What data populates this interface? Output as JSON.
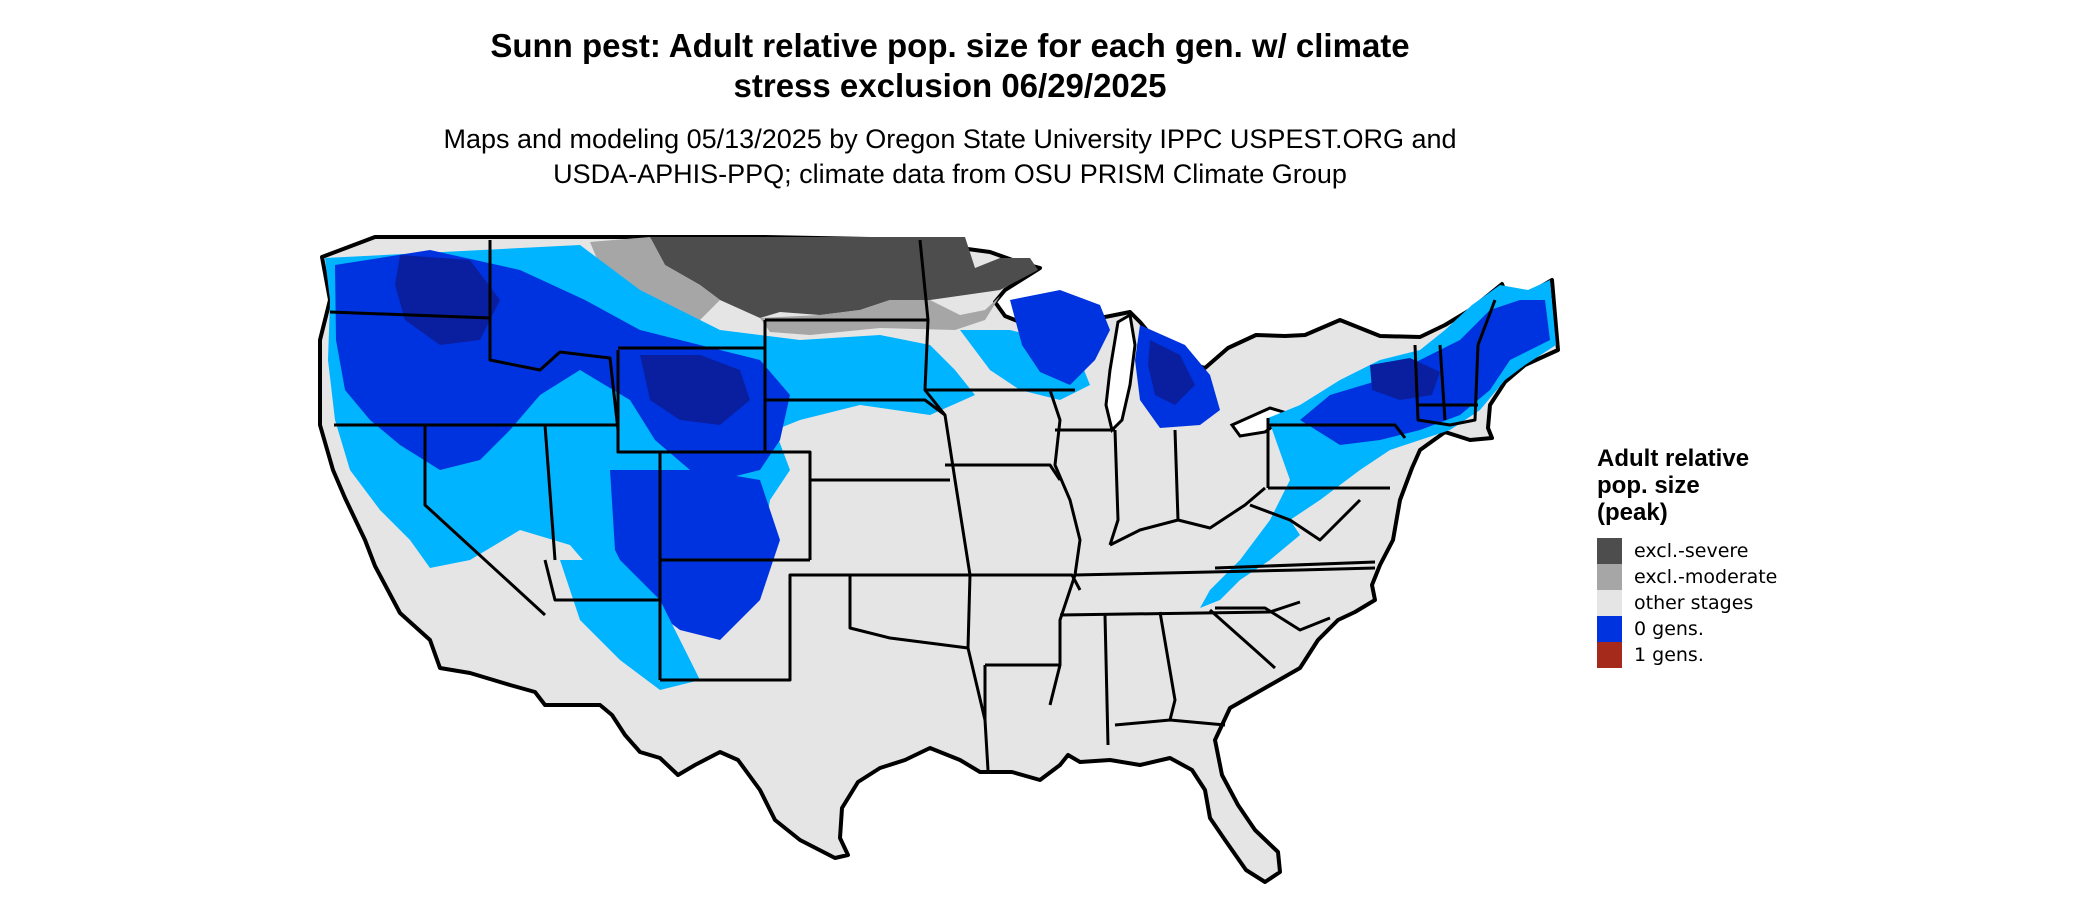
{
  "title_line1": "Sunn pest: Adult relative pop. size for each gen. w/ climate",
  "title_line2": "stress exclusion 06/29/2025",
  "subtitle_line1": "Maps and modeling 05/13/2025 by Oregon State University IPPC USPEST.ORG and",
  "subtitle_line2": "USDA-APHIS-PPQ; climate data from OSU PRISM Climate Group",
  "legend": {
    "title_line1": "Adult relative",
    "title_line2": "pop. size",
    "title_line3": "(peak)",
    "items": [
      {
        "label": "excl.-severe",
        "color": "#4d4d4d"
      },
      {
        "label": "excl.-moderate",
        "color": "#a6a6a6"
      },
      {
        "label": "other stages",
        "color": "#e5e5e5"
      },
      {
        "label": "0 gens.",
        "color": "#0033e0"
      },
      {
        "label": "1 gens.",
        "color": "#a52a1c"
      }
    ]
  },
  "colors": {
    "land": "#e5e5e5",
    "light_blue": "#00b4ff",
    "blue": "#0033e0",
    "dark_blue": "#0a1fa0",
    "border": "#000000",
    "lake": "#ffffff"
  }
}
